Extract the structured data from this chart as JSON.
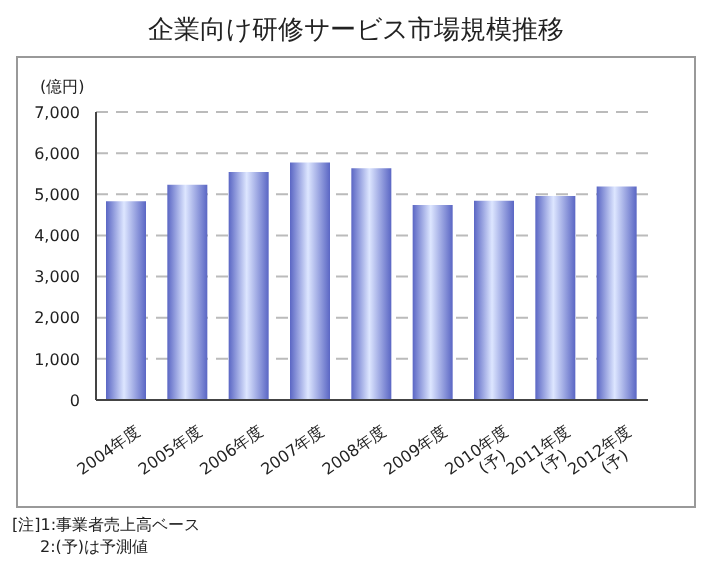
{
  "chart_data": {
    "type": "bar",
    "title": "企業向け研修サービス市場規模推移",
    "ylabel": "(億円)",
    "categories": [
      "2004年度",
      "2005年度",
      "2006年度",
      "2007年度",
      "2008年度",
      "2009年度",
      "2010年度\n(予)",
      "2011年度\n(予)",
      "2012年度\n(予)"
    ],
    "values": [
      4830,
      5230,
      5540,
      5770,
      5630,
      4740,
      4840,
      4960,
      5190
    ],
    "color": "#5a66c4",
    "ylim": [
      0,
      7000
    ],
    "yticks": [
      0,
      {
        "value": 1000,
        "label": "1,000"
      },
      {
        "value": 2000,
        "label": "2,000"
      },
      {
        "value": 3000,
        "label": "3,000"
      },
      {
        "value": 4000,
        "label": "4,000"
      },
      {
        "value": 5000,
        "label": "5,000"
      },
      {
        "value": 6000,
        "label": "6,000"
      },
      {
        "value": 7000,
        "label": "7,000"
      }
    ],
    "grid": "y",
    "legend": false,
    "annotations": [
      "[注]1:事業者売上高ベース",
      "2:(予)は予測値"
    ]
  }
}
